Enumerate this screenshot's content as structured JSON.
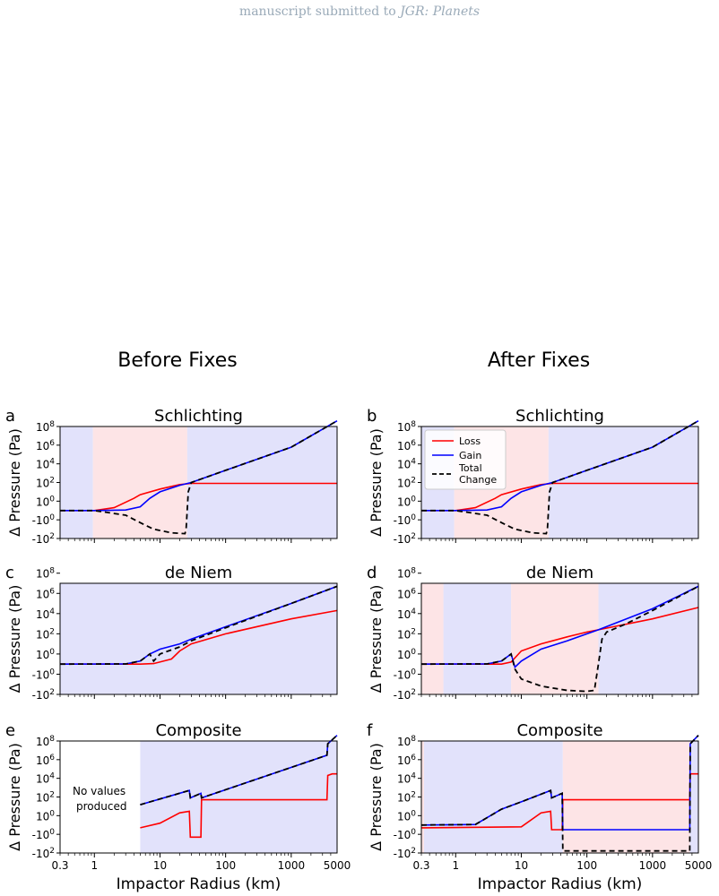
{
  "header": {
    "prefix": "manuscript submitted to ",
    "journal": "JGR: Planets"
  },
  "columns": {
    "left": "Before Fixes",
    "right": "After Fixes"
  },
  "legend": {
    "loss": "Loss",
    "gain": "Gain",
    "total_line1": "Total",
    "total_line2": "Change"
  },
  "axes": {
    "ylabel": "Δ Pressure (Pa)",
    "xlabel": "Impactor Radius (km)",
    "xticks": [
      "0.3",
      "1",
      "10",
      "100",
      "1000",
      "5000"
    ],
    "yticks_schlichting": [
      "10^8",
      "10^6",
      "10^4",
      "10^2",
      "10^0",
      "-10^0",
      "-10^2"
    ],
    "yticks_deniem": [
      "10^8",
      "10^6",
      "10^4",
      "10^2",
      "10^0",
      "-10^0",
      "-10^2"
    ]
  },
  "no_values_note": {
    "line1": "No values",
    "line2": "produced"
  },
  "colors": {
    "loss": "#ff0000",
    "gain": "#0000ff",
    "total": "#000000",
    "bg_gain": "#e2e2fb",
    "bg_loss": "#fde4e6"
  },
  "chart_data": [
    {
      "id": "a",
      "title": "Schlichting",
      "type": "line",
      "xscale": "log",
      "xlim": [
        0.3,
        5000
      ],
      "yscale": "symlog",
      "ylim": [
        -100,
        1000000000.0
      ],
      "bands": [
        {
          "from": 0.3,
          "to": 0.95,
          "kind": "gain"
        },
        {
          "from": 0.95,
          "to": 26,
          "kind": "loss"
        },
        {
          "from": 26,
          "to": 5000,
          "kind": "gain"
        }
      ],
      "series": [
        {
          "name": "Loss",
          "values": [
            [
              0.3,
              0
            ],
            [
              1,
              0
            ],
            [
              2,
              0.3
            ],
            [
              4,
              2
            ],
            [
              5,
              5
            ],
            [
              10,
              20
            ],
            [
              20,
              60
            ],
            [
              30,
              80
            ],
            [
              5000,
              80
            ]
          ]
        },
        {
          "name": "Gain",
          "values": [
            [
              0.3,
              0
            ],
            [
              1,
              0
            ],
            [
              3,
              0.05
            ],
            [
              5,
              0.4
            ],
            [
              7,
              2
            ],
            [
              10,
              10
            ],
            [
              20,
              50
            ],
            [
              30,
              100
            ],
            [
              100,
              2000
            ],
            [
              1000,
              600000
            ],
            [
              5000,
              400000000.0
            ]
          ]
        },
        {
          "name": "Total Change",
          "values": [
            [
              0.3,
              0
            ],
            [
              1,
              0
            ],
            [
              3,
              -0.5
            ],
            [
              5,
              -2
            ],
            [
              8,
              -10
            ],
            [
              15,
              -25
            ],
            [
              24,
              -30
            ],
            [
              25,
              -10
            ],
            [
              26,
              0
            ],
            [
              27,
              10
            ],
            [
              30,
              100
            ],
            [
              100,
              2000
            ],
            [
              1000,
              600000
            ],
            [
              5000,
              400000000.0
            ]
          ]
        }
      ]
    },
    {
      "id": "b",
      "title": "Schlichting",
      "type": "line",
      "xscale": "log",
      "xlim": [
        0.3,
        5000
      ],
      "yscale": "symlog",
      "ylim": [
        -100,
        1000000000.0
      ],
      "legend": "top-left",
      "bands": [
        {
          "from": 0.3,
          "to": 0.95,
          "kind": "gain"
        },
        {
          "from": 0.95,
          "to": 26,
          "kind": "loss"
        },
        {
          "from": 26,
          "to": 5000,
          "kind": "gain"
        }
      ],
      "series": [
        {
          "name": "Loss",
          "values": [
            [
              0.3,
              0
            ],
            [
              1,
              0
            ],
            [
              2,
              0.3
            ],
            [
              4,
              2
            ],
            [
              5,
              5
            ],
            [
              10,
              20
            ],
            [
              20,
              60
            ],
            [
              30,
              80
            ],
            [
              5000,
              80
            ]
          ]
        },
        {
          "name": "Gain",
          "values": [
            [
              0.3,
              0
            ],
            [
              1,
              0
            ],
            [
              3,
              0.05
            ],
            [
              5,
              0.4
            ],
            [
              7,
              2
            ],
            [
              10,
              10
            ],
            [
              20,
              50
            ],
            [
              30,
              100
            ],
            [
              100,
              2000
            ],
            [
              1000,
              600000
            ],
            [
              5000,
              400000000.0
            ]
          ]
        },
        {
          "name": "Total Change",
          "values": [
            [
              0.3,
              0
            ],
            [
              1,
              0
            ],
            [
              3,
              -0.5
            ],
            [
              5,
              -2
            ],
            [
              8,
              -10
            ],
            [
              15,
              -25
            ],
            [
              24,
              -30
            ],
            [
              25,
              -10
            ],
            [
              26,
              0
            ],
            [
              27,
              10
            ],
            [
              30,
              100
            ],
            [
              100,
              2000
            ],
            [
              1000,
              600000
            ],
            [
              5000,
              400000000.0
            ]
          ]
        }
      ]
    },
    {
      "id": "c",
      "title": "de Niem",
      "type": "line",
      "xscale": "log",
      "xlim": [
        0.3,
        5000
      ],
      "yscale": "symlog",
      "ylim": [
        -100,
        100000000.0
      ],
      "bands": [
        {
          "from": 0.3,
          "to": 5000,
          "kind": "gain"
        }
      ],
      "series": [
        {
          "name": "Loss",
          "values": [
            [
              0.3,
              0
            ],
            [
              5,
              0
            ],
            [
              8,
              0.05
            ],
            [
              15,
              0.5
            ],
            [
              20,
              2
            ],
            [
              30,
              10
            ],
            [
              100,
              100
            ],
            [
              1000,
              3000
            ],
            [
              5000,
              20000
            ]
          ]
        },
        {
          "name": "Gain",
          "values": [
            [
              0.3,
              0
            ],
            [
              3,
              0.02
            ],
            [
              5,
              0.3
            ],
            [
              7,
              1
            ],
            [
              10,
              3
            ],
            [
              20,
              10
            ],
            [
              30,
              30
            ],
            [
              100,
              500
            ],
            [
              1000,
              100000
            ],
            [
              5000,
              5000000
            ]
          ]
        },
        {
          "name": "Total Change",
          "values": [
            [
              0.3,
              0
            ],
            [
              3,
              0.02
            ],
            [
              5,
              0.3
            ],
            [
              7,
              1
            ],
            [
              8,
              0.3
            ],
            [
              10,
              1
            ],
            [
              20,
              5
            ],
            [
              30,
              20
            ],
            [
              100,
              400
            ],
            [
              1000,
              100000
            ],
            [
              5000,
              5000000
            ]
          ]
        }
      ]
    },
    {
      "id": "d",
      "title": "de Niem",
      "type": "line",
      "xscale": "log",
      "xlim": [
        0.3,
        5000
      ],
      "yscale": "symlog",
      "ylim": [
        -100,
        100000000.0
      ],
      "bands": [
        {
          "from": 0.3,
          "to": 0.65,
          "kind": "loss"
        },
        {
          "from": 0.65,
          "to": 7,
          "kind": "gain"
        },
        {
          "from": 7,
          "to": 150,
          "kind": "loss"
        },
        {
          "from": 150,
          "to": 5000,
          "kind": "gain"
        }
      ],
      "series": [
        {
          "name": "Loss",
          "values": [
            [
              0.3,
              0
            ],
            [
              5,
              0
            ],
            [
              7,
              0.2
            ],
            [
              10,
              2
            ],
            [
              20,
              10
            ],
            [
              50,
              50
            ],
            [
              100,
              150
            ],
            [
              150,
              250
            ],
            [
              1000,
              3000
            ],
            [
              5000,
              40000
            ]
          ]
        },
        {
          "name": "Gain",
          "values": [
            [
              0.3,
              0
            ],
            [
              3,
              0.02
            ],
            [
              5,
              0.3
            ],
            [
              7,
              1
            ],
            [
              8,
              -0.3
            ],
            [
              10,
              0.3
            ],
            [
              20,
              3
            ],
            [
              50,
              20
            ],
            [
              100,
              100
            ],
            [
              150,
              250
            ],
            [
              1000,
              30000
            ],
            [
              5000,
              5000000
            ]
          ]
        },
        {
          "name": "Total Change",
          "values": [
            [
              0.3,
              0
            ],
            [
              3,
              0.02
            ],
            [
              5,
              0.3
            ],
            [
              7,
              1
            ],
            [
              8,
              -0.5
            ],
            [
              10,
              -3
            ],
            [
              20,
              -15
            ],
            [
              50,
              -40
            ],
            [
              100,
              -50
            ],
            [
              130,
              -40
            ],
            [
              150,
              0
            ],
            [
              170,
              30
            ],
            [
              200,
              150
            ],
            [
              400,
              1000
            ],
            [
              1000,
              20000
            ],
            [
              5000,
              5000000
            ]
          ]
        }
      ]
    },
    {
      "id": "e",
      "title": "Composite",
      "type": "line",
      "xscale": "log",
      "xlim": [
        0.3,
        5000
      ],
      "yscale": "symlog",
      "ylim": [
        -100,
        1000000000.0
      ],
      "bands": [
        {
          "from": 5,
          "to": 5000,
          "kind": "gain"
        }
      ],
      "series": [
        {
          "name": "Loss",
          "values": [
            [
              5,
              -0.3
            ],
            [
              10,
              0.2
            ],
            [
              20,
              2
            ],
            [
              28,
              3
            ],
            [
              29,
              -2
            ],
            [
              42,
              -2
            ],
            [
              43,
              50
            ],
            [
              3500,
              50
            ],
            [
              3600,
              20000
            ],
            [
              4200,
              30000
            ],
            [
              5000,
              30000
            ]
          ]
        },
        {
          "name": "Gain",
          "values": [
            [
              5,
              15
            ],
            [
              28,
              500
            ],
            [
              29,
              80
            ],
            [
              42,
              250
            ],
            [
              43,
              80
            ],
            [
              3500,
              3000000
            ],
            [
              3600,
              50000000
            ],
            [
              5000,
              400000000.0
            ]
          ]
        },
        {
          "name": "Total Change",
          "values": [
            [
              5,
              15
            ],
            [
              28,
              500
            ],
            [
              29,
              80
            ],
            [
              42,
              250
            ],
            [
              43,
              80
            ],
            [
              3500,
              3000000
            ],
            [
              3600,
              50000000
            ],
            [
              5000,
              400000000.0
            ]
          ]
        }
      ]
    },
    {
      "id": "f",
      "title": "Composite",
      "type": "line",
      "xscale": "log",
      "xlim": [
        0.3,
        5000
      ],
      "yscale": "symlog",
      "ylim": [
        -100,
        1000000000.0
      ],
      "bands": [
        {
          "from": 0.3,
          "to": 0.33,
          "kind": "loss"
        },
        {
          "from": 0.33,
          "to": 43,
          "kind": "gain"
        },
        {
          "from": 43,
          "to": 3700,
          "kind": "loss"
        },
        {
          "from": 3700,
          "to": 5000,
          "kind": "gain"
        }
      ],
      "series": [
        {
          "name": "Loss",
          "values": [
            [
              0.3,
              -0.3
            ],
            [
              10,
              -0.2
            ],
            [
              20,
              2
            ],
            [
              28,
              3
            ],
            [
              29,
              -0.5
            ],
            [
              42,
              -0.5
            ],
            [
              43,
              50
            ],
            [
              3700,
              50
            ],
            [
              3750,
              30000
            ],
            [
              5000,
              30000
            ]
          ]
        },
        {
          "name": "Gain",
          "values": [
            [
              0.3,
              0
            ],
            [
              2,
              0.05
            ],
            [
              5,
              5
            ],
            [
              10,
              30
            ],
            [
              28,
              500
            ],
            [
              29,
              80
            ],
            [
              42,
              250
            ],
            [
              43,
              -0.5
            ],
            [
              3700,
              -0.5
            ],
            [
              3750,
              50000000
            ],
            [
              5000,
              400000000.0
            ]
          ]
        },
        {
          "name": "Total Change",
          "values": [
            [
              0.3,
              0
            ],
            [
              2,
              0.05
            ],
            [
              5,
              5
            ],
            [
              10,
              30
            ],
            [
              28,
              500
            ],
            [
              29,
              80
            ],
            [
              42,
              250
            ],
            [
              43,
              -60
            ],
            [
              3700,
              -60
            ],
            [
              3750,
              50000000
            ],
            [
              5000,
              400000000.0
            ]
          ]
        }
      ]
    }
  ]
}
